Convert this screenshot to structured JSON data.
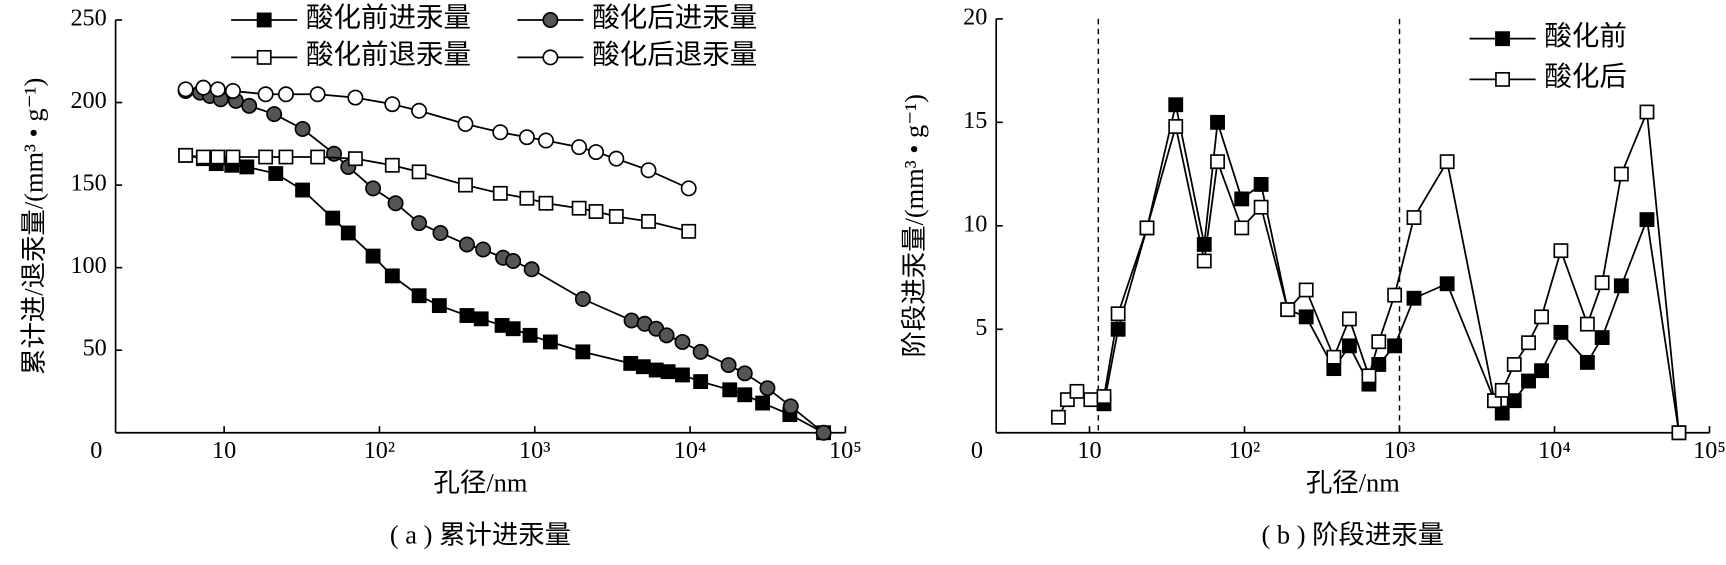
{
  "chart_data": [
    {
      "type": "line",
      "x_label": "孔径/nm",
      "y_label": "累计进/退汞量/(mm³ • g⁻¹)",
      "caption": "( a ) 累计进汞量",
      "xscale": "log",
      "xlim": [
        2,
        100000
      ],
      "ylim": [
        0,
        250
      ],
      "xticks": [
        10,
        {
          "value": 100,
          "label": "10²"
        },
        {
          "value": 1000,
          "label": "10³"
        },
        {
          "value": 10000,
          "label": "10⁴"
        },
        {
          "value": 100000,
          "label": "10⁵"
        }
      ],
      "yticks": [
        0,
        50,
        100,
        150,
        200,
        250
      ],
      "legend_loc": "upper center",
      "series": [
        {
          "name": "酸化前进汞量",
          "color": "#000000",
          "marker": "square",
          "fill": "#000000",
          "x": [
            5.65,
            7.35,
            8.9,
            11.2,
            14,
            21.5,
            32,
            50,
            63,
            91,
            121,
            180,
            243,
            366,
            452,
            616,
            726,
            933,
            1260,
            2040,
            4150,
            5000,
            6050,
            7220,
            8930,
            11700,
            18000,
            22500,
            29300,
            43900,
            72400
          ],
          "values": [
            168,
            166,
            163,
            162,
            161,
            157,
            147,
            130,
            121,
            107,
            95,
            83,
            77,
            71,
            69,
            65,
            63,
            59,
            55,
            49,
            42,
            40,
            38,
            37,
            35,
            31,
            26,
            23,
            18,
            11,
            0
          ]
        },
        {
          "name": "酸化后进汞量",
          "color": "#000000",
          "marker": "circle",
          "fill": "#555555",
          "x": [
            5.65,
            7.0,
            8.1,
            9.5,
            11.9,
            14.5,
            21,
            32,
            51,
            63,
            91,
            127,
            180,
            247,
            366,
            465,
            625,
            726,
            955,
            2040,
            4200,
            5100,
            6050,
            7060,
            8930,
            11700,
            17700,
            22500,
            31500,
            44500,
            72400
          ],
          "values": [
            207,
            206,
            204,
            202,
            201,
            198,
            193,
            184,
            169,
            161,
            148,
            139,
            127,
            121,
            114,
            111,
            106,
            104,
            99,
            81,
            68,
            66,
            63,
            59,
            55,
            49,
            41,
            36,
            27,
            16,
            0
          ]
        },
        {
          "name": "酸化前退汞量",
          "color": "#000000",
          "marker": "square",
          "fill": "#ffffff",
          "x": [
            5.65,
            7.35,
            9.1,
            11.4,
            18.5,
            25,
            40,
            70,
            121,
            180,
            358,
            600,
            890,
            1180,
            1930,
            2480,
            3350,
            5400,
            9800
          ],
          "values": [
            168,
            167,
            167,
            167,
            167,
            167,
            167,
            166,
            162,
            158,
            150,
            145,
            142,
            139,
            136,
            134,
            131,
            128,
            122
          ]
        },
        {
          "name": "酸化后退汞量",
          "color": "#000000",
          "marker": "circle",
          "fill": "#ffffff",
          "x": [
            5.65,
            7.35,
            9.1,
            11.4,
            18.5,
            25,
            40,
            70,
            121,
            180,
            358,
            600,
            890,
            1180,
            1930,
            2480,
            3350,
            5400,
            9800
          ],
          "values": [
            208,
            209,
            208,
            207,
            205,
            205,
            205,
            203,
            199,
            195,
            187,
            182,
            179,
            177,
            173,
            170,
            166,
            159,
            148
          ]
        }
      ]
    },
    {
      "type": "line",
      "x_label": "孔径/nm",
      "y_label": "阶段进汞量/(mm³ • g⁻¹)",
      "caption": "( b ) 阶段进汞量",
      "xscale": "log",
      "xlim": [
        2.5,
        100000
      ],
      "ylim": [
        0,
        20
      ],
      "xticks": [
        10,
        {
          "value": 100,
          "label": "10²"
        },
        {
          "value": 1000,
          "label": "10³"
        },
        {
          "value": 10000,
          "label": "10⁴"
        },
        {
          "value": 100000,
          "label": "10⁵"
        }
      ],
      "yticks": [
        0,
        5,
        10,
        15,
        20
      ],
      "legend_loc": "upper right",
      "vlines": [
        11.4,
        1000
      ],
      "series": [
        {
          "name": "酸化前",
          "color": "#000000",
          "marker": "square",
          "fill": "#000000",
          "x": [
            12.4,
            15.3,
            23.5,
            36,
            55,
            67,
            96,
            128,
            190,
            250,
            377,
            475,
            635,
            735,
            930,
            1240,
            2030,
            4100,
            4600,
            5500,
            6800,
            8250,
            11000,
            16300,
            20300,
            27000,
            39500,
            63500
          ],
          "values": [
            1.4,
            5.0,
            9.9,
            15.85,
            9.1,
            15.0,
            11.3,
            12.0,
            5.95,
            5.6,
            3.1,
            4.2,
            2.35,
            3.3,
            4.2,
            6.5,
            7.2,
            1.55,
            0.95,
            1.55,
            2.5,
            3.0,
            4.85,
            3.4,
            4.6,
            7.1,
            10.3,
            0
          ]
        },
        {
          "name": "酸化后",
          "color": "#000000",
          "marker": "square",
          "fill": "#ffffff",
          "x": [
            6.3,
            7.2,
            8.3,
            10.2,
            12.4,
            15.3,
            23.5,
            36,
            55,
            67,
            96,
            128,
            190,
            250,
            377,
            475,
            635,
            735,
            930,
            1240,
            2030,
            4100,
            4600,
            5500,
            6800,
            8250,
            11000,
            16300,
            20300,
            27000,
            39500,
            63500
          ],
          "values": [
            0.75,
            1.6,
            2.0,
            1.6,
            1.75,
            5.75,
            9.9,
            14.8,
            8.3,
            13.1,
            9.9,
            10.9,
            5.95,
            6.9,
            3.65,
            5.5,
            2.75,
            4.4,
            6.65,
            10.4,
            13.1,
            1.55,
            2.05,
            3.3,
            4.35,
            5.6,
            8.8,
            5.25,
            7.25,
            12.5,
            15.5,
            0
          ]
        }
      ]
    }
  ]
}
